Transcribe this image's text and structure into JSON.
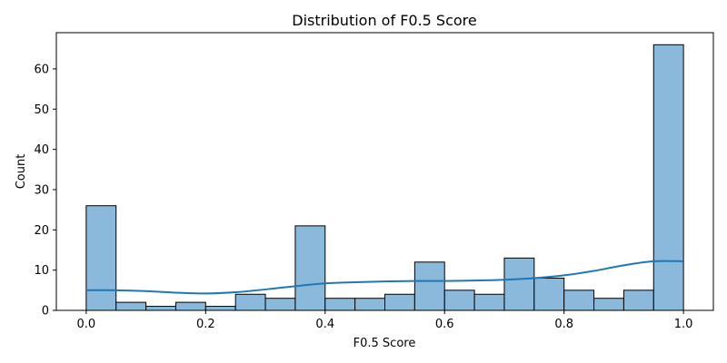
{
  "chart_data": {
    "type": "bar",
    "title": "Distribution of F0.5 Score",
    "xlabel": "F0.5 Score",
    "ylabel": "Count",
    "xlim": [
      -0.05,
      1.05
    ],
    "ylim": [
      0,
      69
    ],
    "bin_edges": [
      0.0,
      0.05,
      0.1,
      0.15,
      0.2,
      0.25,
      0.3,
      0.35,
      0.4,
      0.45,
      0.5,
      0.55,
      0.6,
      0.65,
      0.7,
      0.75,
      0.8,
      0.85,
      0.9,
      0.95,
      1.0
    ],
    "values": [
      26,
      2,
      1,
      2,
      1,
      4,
      3,
      21,
      3,
      3,
      4,
      12,
      5,
      4,
      13,
      8,
      5,
      3,
      5,
      66
    ],
    "x_ticks": [
      0.0,
      0.2,
      0.4,
      0.6,
      0.8,
      1.0
    ],
    "x_tick_labels": [
      "0.0",
      "0.2",
      "0.4",
      "0.6",
      "0.8",
      "1.0"
    ],
    "y_ticks": [
      0,
      10,
      20,
      30,
      40,
      50,
      60
    ],
    "y_tick_labels": [
      "0",
      "10",
      "20",
      "30",
      "40",
      "50",
      "60"
    ],
    "kde": {
      "x": [
        0.0,
        0.05,
        0.1,
        0.15,
        0.2,
        0.25,
        0.3,
        0.35,
        0.4,
        0.45,
        0.5,
        0.55,
        0.6,
        0.65,
        0.7,
        0.75,
        0.8,
        0.85,
        0.9,
        0.95,
        1.0
      ],
      "y": [
        5.0,
        5.0,
        4.8,
        4.4,
        4.2,
        4.5,
        5.2,
        6.0,
        6.7,
        7.0,
        7.2,
        7.3,
        7.3,
        7.4,
        7.6,
        8.0,
        8.7,
        9.8,
        11.2,
        12.2,
        12.2
      ]
    },
    "grid": false,
    "colors": {
      "bar_fill": "#8ab9db",
      "bar_edge": "#000000",
      "kde_line": "#1f77b4"
    }
  }
}
